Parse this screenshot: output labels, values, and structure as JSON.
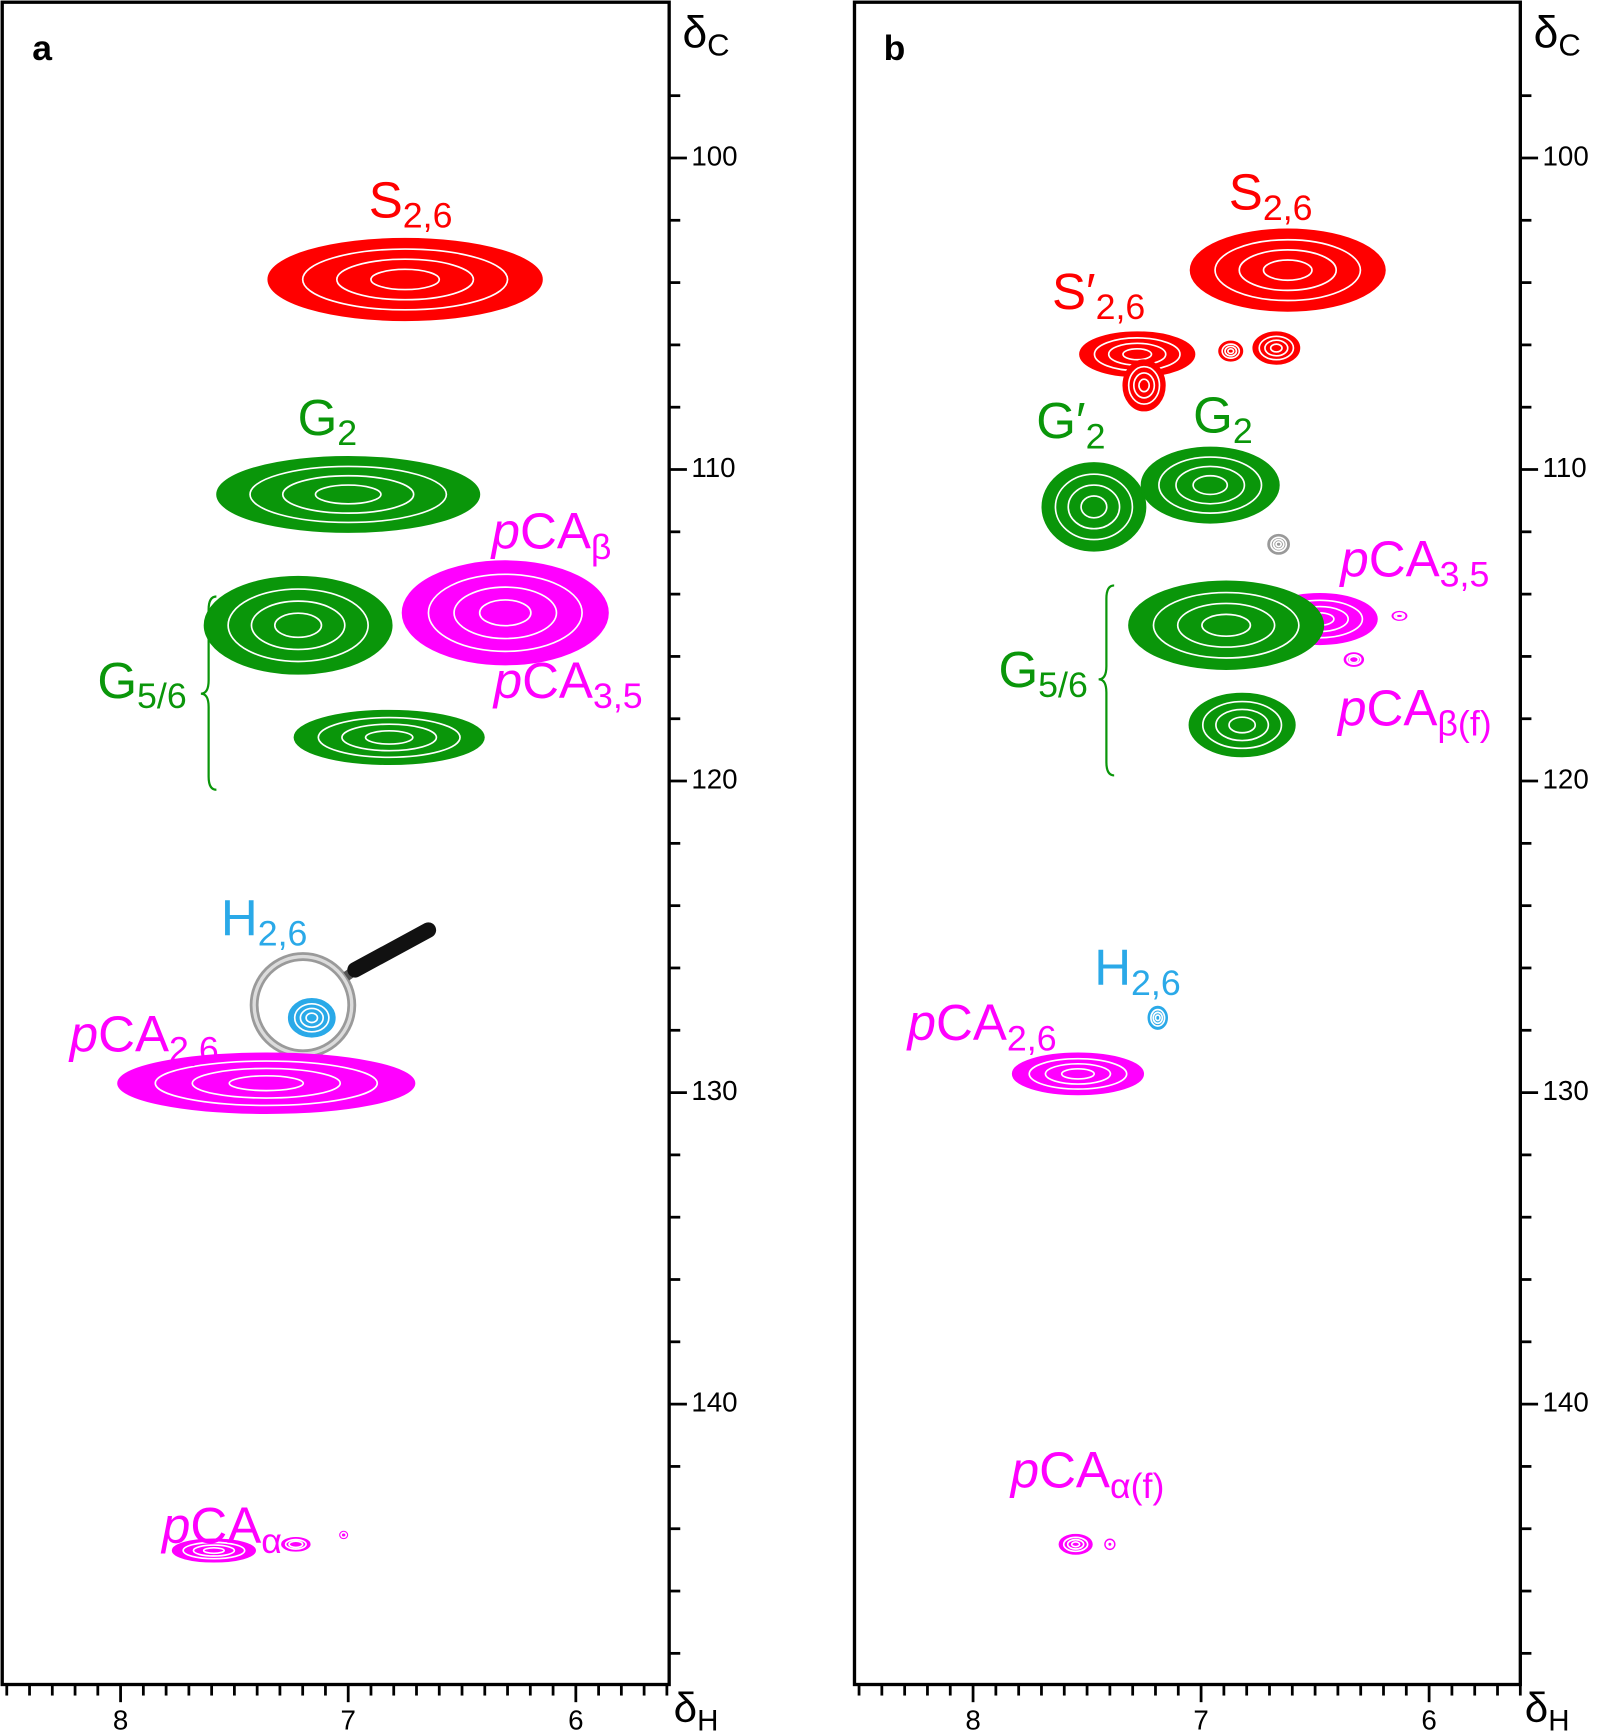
{
  "chart_data": [
    {
      "type": "contour",
      "panel": "a",
      "xlabel": {
        "text": "δ",
        "sub": "H"
      },
      "ylabel": {
        "text": "δ",
        "sub": "C"
      },
      "xlim": [
        8.52,
        5.59
      ],
      "ylim": [
        95,
        149
      ],
      "xticks": [
        8,
        7,
        6
      ],
      "yticks": [
        100,
        110,
        120,
        130,
        140
      ],
      "minor_xticks": [
        8.5,
        8.4,
        8.3,
        8.2,
        8.1,
        7.9,
        7.8,
        7.7,
        7.6,
        7.5,
        7.4,
        7.3,
        7.2,
        7.1,
        6.9,
        6.8,
        6.7,
        6.6,
        6.5,
        6.4,
        6.3,
        6.2,
        6.1,
        5.9,
        5.8,
        5.7,
        5.6
      ],
      "minor_yticks": [
        98,
        102,
        104,
        106,
        108,
        112,
        114,
        116,
        118,
        122,
        124,
        126,
        128,
        132,
        134,
        136,
        138,
        142,
        144,
        146,
        148
      ],
      "peaks": [
        {
          "color": "#ff0000",
          "x": 6.75,
          "y": 103.9,
          "dx": 1.2,
          "dy": 2.6
        },
        {
          "color": "#0a960a",
          "x": 7.0,
          "y": 110.8,
          "dx": 1.15,
          "dy": 2.4
        },
        {
          "color": "#ff00ff",
          "x": 6.31,
          "y": 114.6,
          "dx": 0.9,
          "dy": 3.3
        },
        {
          "color": "#0a960a",
          "x": 7.22,
          "y": 115.0,
          "dx": 0.82,
          "dy": 3.1
        },
        {
          "color": "#0a960a",
          "x": 6.82,
          "y": 118.6,
          "dx": 0.83,
          "dy": 1.7
        },
        {
          "color": "#2aa9e8",
          "x": 7.16,
          "y": 127.6,
          "dx": 0.2,
          "dy": 1.2
        },
        {
          "color": "#ff00ff",
          "x": 7.36,
          "y": 129.7,
          "dx": 1.3,
          "dy": 1.9
        },
        {
          "color": "#ff00ff",
          "x": 7.59,
          "y": 144.7,
          "dx": 0.36,
          "dy": 0.7
        },
        {
          "color": "#ff00ff",
          "x": 7.23,
          "y": 144.5,
          "dx": 0.12,
          "dy": 0.4
        },
        {
          "color": "#ff00ff",
          "x": 7.02,
          "y": 144.2,
          "dx": 0.03,
          "dy": 0.2
        }
      ],
      "annotations": [
        {
          "text": "S",
          "sub": "2,6",
          "color": "#ff0000"
        },
        {
          "text": "G",
          "sub": "2",
          "color": "#0a960a"
        },
        {
          "italic": "p",
          "text": "CA",
          "sub": "β",
          "color": "#ff00ff"
        },
        {
          "italic": "p",
          "text": "CA",
          "sub": "3,5",
          "color": "#ff00ff"
        },
        {
          "text": "G",
          "sub": "5/6",
          "color": "#0a960a"
        },
        {
          "text": "H",
          "sub": "2,6",
          "color": "#2aa9e8"
        },
        {
          "italic": "p",
          "text": "CA",
          "sub": "2,6",
          "color": "#ff00ff"
        },
        {
          "italic": "p",
          "text": "CA",
          "sub": "α",
          "color": "#ff00ff"
        }
      ]
    },
    {
      "type": "contour",
      "panel": "b",
      "xlabel": {
        "text": "δ",
        "sub": "H"
      },
      "ylabel": {
        "text": "δ",
        "sub": "C"
      },
      "xlim": [
        8.52,
        5.6
      ],
      "ylim": [
        95,
        149
      ],
      "xticks": [
        8,
        7,
        6
      ],
      "yticks": [
        100,
        110,
        120,
        130,
        140
      ],
      "minor_xticks": [
        8.5,
        8.4,
        8.3,
        8.2,
        8.1,
        7.9,
        7.8,
        7.7,
        7.6,
        7.5,
        7.4,
        7.3,
        7.2,
        7.1,
        6.9,
        6.8,
        6.7,
        6.6,
        6.5,
        6.4,
        6.3,
        6.2,
        6.1,
        5.9,
        5.8,
        5.7,
        5.6
      ],
      "minor_yticks": [
        98,
        102,
        104,
        106,
        108,
        112,
        114,
        116,
        118,
        122,
        124,
        126,
        128,
        132,
        134,
        136,
        138,
        142,
        144,
        146,
        148
      ],
      "peaks": [
        {
          "color": "#ff0000",
          "x": 6.62,
          "y": 103.6,
          "dx": 0.85,
          "dy": 2.6
        },
        {
          "color": "#ff0000",
          "x": 7.28,
          "y": 106.3,
          "dx": 0.5,
          "dy": 1.4
        },
        {
          "color": "#ff0000",
          "x": 7.25,
          "y": 107.3,
          "dx": 0.18,
          "dy": 1.6
        },
        {
          "color": "#ff0000",
          "x": 6.87,
          "y": 106.2,
          "dx": 0.1,
          "dy": 0.6
        },
        {
          "color": "#ff0000",
          "x": 6.67,
          "y": 106.1,
          "dx": 0.2,
          "dy": 1.0
        },
        {
          "color": "#0a960a",
          "x": 7.47,
          "y": 111.2,
          "dx": 0.45,
          "dy": 2.8
        },
        {
          "color": "#0a960a",
          "x": 6.96,
          "y": 110.5,
          "dx": 0.6,
          "dy": 2.4
        },
        {
          "color": "#999999",
          "x": 6.66,
          "y": 112.4,
          "dx": 0.09,
          "dy": 0.6
        },
        {
          "color": "#ff00ff",
          "x": 6.48,
          "y": 114.8,
          "dx": 0.5,
          "dy": 1.6
        },
        {
          "color": "#0a960a",
          "x": 6.89,
          "y": 115.0,
          "dx": 0.85,
          "dy": 2.8
        },
        {
          "color": "#ff00ff",
          "x": 6.13,
          "y": 114.7,
          "dx": 0.06,
          "dy": 0.25
        },
        {
          "color": "#ff00ff",
          "x": 6.33,
          "y": 116.1,
          "dx": 0.08,
          "dy": 0.4
        },
        {
          "color": "#0a960a",
          "x": 6.82,
          "y": 118.2,
          "dx": 0.46,
          "dy": 2.0
        },
        {
          "color": "#2aa9e8",
          "x": 7.19,
          "y": 127.6,
          "dx": 0.08,
          "dy": 0.7
        },
        {
          "color": "#ff00ff",
          "x": 7.54,
          "y": 129.4,
          "dx": 0.57,
          "dy": 1.3
        },
        {
          "color": "#ff00ff",
          "x": 7.55,
          "y": 144.5,
          "dx": 0.14,
          "dy": 0.6
        },
        {
          "color": "#ff00ff",
          "x": 7.4,
          "y": 144.5,
          "dx": 0.04,
          "dy": 0.3
        }
      ],
      "annotations": [
        {
          "text": "S",
          "sub": "2,6",
          "color": "#ff0000"
        },
        {
          "text": "S′",
          "sub": "2,6",
          "color": "#ff0000"
        },
        {
          "text": "G′",
          "sub": "2",
          "color": "#0a960a"
        },
        {
          "text": "G",
          "sub": "2",
          "color": "#0a960a"
        },
        {
          "italic": "p",
          "text": "CA",
          "sub": "3,5",
          "color": "#ff00ff"
        },
        {
          "text": "G",
          "sub": "5/6",
          "color": "#0a960a"
        },
        {
          "italic": "p",
          "text": "CA",
          "sub": "β(f)",
          "color": "#ff00ff"
        },
        {
          "text": "H",
          "sub": "2,6",
          "color": "#2aa9e8"
        },
        {
          "italic": "p",
          "text": "CA",
          "sub": "2,6",
          "color": "#ff00ff"
        },
        {
          "italic": "p",
          "text": "CA",
          "sub": "α(f)",
          "color": "#ff00ff"
        }
      ]
    }
  ]
}
